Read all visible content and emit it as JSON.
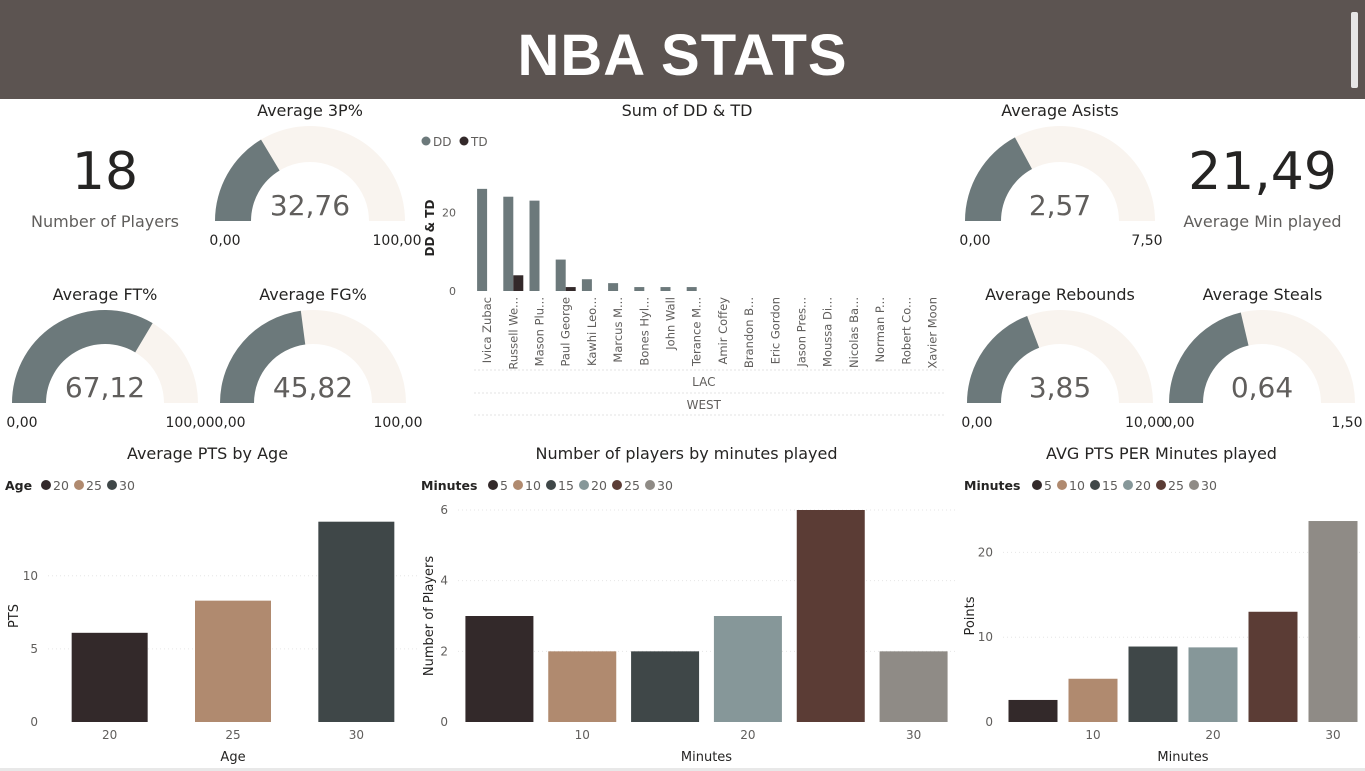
{
  "header": {
    "title": "NBA STATS"
  },
  "cards": {
    "players": {
      "value": "18",
      "label": "Number of Players"
    },
    "minutes": {
      "value": "21,49",
      "label": "Average Min played"
    }
  },
  "gauges": [
    {
      "id": "g3p",
      "title": "Average 3P%",
      "value": 32.76,
      "max": 100,
      "value_label": "32,76",
      "min_label": "0,00",
      "max_label": "100,00"
    },
    {
      "id": "gast",
      "title": "Average Asists",
      "value": 2.57,
      "max": 7.5,
      "value_label": "2,57",
      "min_label": "0,00",
      "max_label": "7,50"
    },
    {
      "id": "gft",
      "title": "Average FT%",
      "value": 67.12,
      "max": 100,
      "value_label": "67,12",
      "min_label": "0,00",
      "max_label": "100,00"
    },
    {
      "id": "gfg",
      "title": "Average FG%",
      "value": 45.82,
      "max": 100,
      "value_label": "45,82",
      "min_label": "0,00",
      "max_label": "100,00"
    },
    {
      "id": "greb",
      "title": "Average Rebounds",
      "value": 3.85,
      "max": 10,
      "value_label": "3,85",
      "min_label": "0,00",
      "max_label": "10,00"
    },
    {
      "id": "gstl",
      "title": "Average Steals",
      "value": 0.64,
      "max": 1.5,
      "value_label": "0,64",
      "min_label": "0,00",
      "max_label": "1,50"
    }
  ],
  "colors": {
    "banner": "#5c5451",
    "gauge_fill": "#6c797b",
    "gauge_track": "#f9f4ef",
    "dd": "#6c797b",
    "td": "#33292a"
  },
  "chart_data": [
    {
      "type": "bar",
      "title": "Sum of DD & TD",
      "ylabel": "DD & TD",
      "legend": [
        "DD",
        "TD"
      ],
      "legend_position": "top-left",
      "categories": [
        "Ivica Zubac",
        "Russell We...",
        "Mason Plu...",
        "Paul George",
        "Kawhi Leo...",
        "Marcus M...",
        "Bones Hyl...",
        "John Wall",
        "Terance M...",
        "Amir Coffey",
        "Brandon B...",
        "Eric Gordon",
        "Jason Pres...",
        "Moussa Di...",
        "Nicolas Ba...",
        "Norman P...",
        "Robert Co...",
        "Xavier Moon"
      ],
      "group_labels": [
        "LAC",
        "WEST"
      ],
      "series": [
        {
          "name": "DD",
          "values": [
            26,
            24,
            23,
            8,
            3,
            2,
            1,
            1,
            1,
            0,
            0,
            0,
            0,
            0,
            0,
            0,
            0,
            0
          ]
        },
        {
          "name": "TD",
          "values": [
            0,
            4,
            0,
            1,
            0,
            0,
            0,
            0,
            0,
            0,
            0,
            0,
            0,
            0,
            0,
            0,
            0,
            0
          ]
        }
      ],
      "yticks": [
        0,
        20
      ],
      "ylim": [
        0,
        28
      ]
    },
    {
      "type": "bar",
      "title": "Average PTS by Age",
      "xlabel": "Age",
      "ylabel": "PTS",
      "legend_title": "Age",
      "legend": [
        "20",
        "25",
        "30"
      ],
      "categories": [
        "20",
        "25",
        "30"
      ],
      "values": [
        6.1,
        8.3,
        13.7
      ],
      "colors": [
        "#33292a",
        "#b08a6f",
        "#3f4748"
      ],
      "yticks": [
        0,
        5,
        10
      ],
      "ylim": [
        0,
        14.5
      ]
    },
    {
      "type": "bar",
      "title": "Number of players by minutes played",
      "xlabel": "Minutes",
      "ylabel": "Number of Players",
      "legend_title": "Minutes",
      "legend": [
        "5",
        "10",
        "15",
        "20",
        "25",
        "30"
      ],
      "categories": [
        "5",
        "10",
        "15",
        "20",
        "25",
        "30"
      ],
      "x_tick_labels": [
        "10",
        "20",
        "30"
      ],
      "values": [
        3,
        2,
        2,
        3,
        6,
        2
      ],
      "colors": [
        "#33292a",
        "#b08a6f",
        "#3f4748",
        "#869799",
        "#5b3c35",
        "#8f8b86"
      ],
      "yticks": [
        0,
        2,
        4,
        6
      ],
      "ylim": [
        0,
        6
      ]
    },
    {
      "type": "bar",
      "title": "AVG PTS PER Minutes played",
      "xlabel": "Minutes",
      "ylabel": "Points",
      "legend_title": "Minutes",
      "legend": [
        "5",
        "10",
        "15",
        "20",
        "25",
        "30"
      ],
      "categories": [
        "5",
        "10",
        "15",
        "20",
        "25",
        "30"
      ],
      "x_tick_labels": [
        "10",
        "20",
        "30"
      ],
      "values": [
        2.6,
        5.1,
        8.9,
        8.8,
        13.0,
        23.7
      ],
      "colors": [
        "#33292a",
        "#b08a6f",
        "#3f4748",
        "#869799",
        "#5b3c35",
        "#8f8b86"
      ],
      "yticks": [
        0,
        10,
        20
      ],
      "ylim": [
        0,
        25
      ]
    }
  ]
}
